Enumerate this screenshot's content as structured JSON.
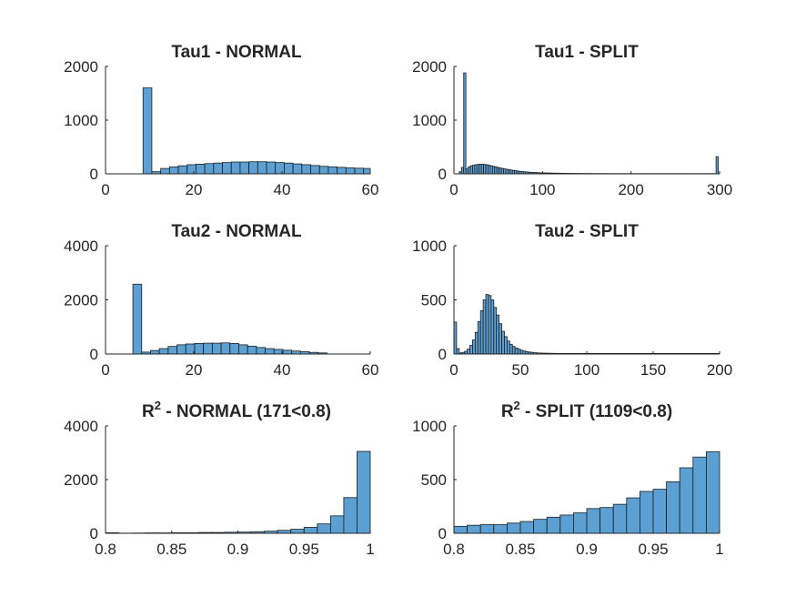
{
  "figure": {
    "bar_color": "#5b9fd3",
    "edge_color": "#1d1d1d",
    "axis_color": "#262626",
    "background": "#ffffff"
  },
  "chart_data": [
    {
      "type": "bar",
      "title": "Tau1 - NORMAL",
      "title_sup": "",
      "xlim": [
        0,
        60
      ],
      "ylim": [
        0,
        2000
      ],
      "xticks": [
        0,
        20,
        40,
        60
      ],
      "xtick_labels": [
        "0",
        "20",
        "40",
        "60"
      ],
      "yticks": [
        0,
        1000,
        2000
      ],
      "ytick_labels": [
        "0",
        "1000",
        "2000"
      ],
      "bin_start": 6.5,
      "bin_width": 2,
      "values": [
        0,
        1600,
        40,
        100,
        130,
        150,
        170,
        180,
        190,
        200,
        210,
        220,
        220,
        225,
        225,
        220,
        210,
        200,
        185,
        170,
        155,
        140,
        130,
        120,
        110,
        105,
        100
      ]
    },
    {
      "type": "bar",
      "title": "Tau1 - SPLIT",
      "title_sup": "",
      "xlim": [
        0,
        300
      ],
      "ylim": [
        0,
        2000
      ],
      "xticks": [
        0,
        100,
        200,
        300
      ],
      "xtick_labels": [
        "0",
        "100",
        "200",
        "300"
      ],
      "yticks": [
        0,
        1000,
        2000
      ],
      "ytick_labels": [
        "0",
        "1000",
        "2000"
      ],
      "bin_start": 1,
      "bin_width": 2.5,
      "values": [
        0,
        0,
        40,
        120,
        1880,
        90,
        130,
        150,
        160,
        170,
        175,
        180,
        180,
        175,
        170,
        160,
        150,
        140,
        130,
        120,
        110,
        100,
        92,
        85,
        78,
        70,
        64,
        58,
        52,
        47,
        42,
        38,
        34,
        31,
        28,
        26,
        24,
        22,
        20,
        18,
        17,
        16,
        15,
        14,
        13,
        12,
        12,
        11,
        10,
        10,
        9,
        9,
        8,
        8,
        8,
        7,
        7,
        7,
        6,
        6,
        6,
        6,
        5,
        5,
        5,
        5,
        5,
        5,
        5,
        5,
        4,
        4,
        4,
        4,
        4,
        4,
        4,
        4,
        4,
        4,
        4,
        4,
        4,
        4,
        4,
        4,
        4,
        4,
        4,
        4,
        4,
        4,
        4,
        4,
        4,
        4,
        4,
        4,
        4,
        4,
        4,
        4,
        4,
        4,
        4,
        4,
        4,
        4,
        4,
        4,
        4,
        4,
        4,
        4,
        4,
        4,
        4,
        4,
        320
      ]
    },
    {
      "type": "bar",
      "title": "Tau2 - NORMAL",
      "title_sup": "",
      "xlim": [
        0,
        60
      ],
      "ylim": [
        0,
        4000
      ],
      "xticks": [
        0,
        20,
        40,
        60
      ],
      "xtick_labels": [
        "0",
        "20",
        "40",
        "60"
      ],
      "yticks": [
        0,
        2000,
        4000
      ],
      "ytick_labels": [
        "0",
        "2000",
        "4000"
      ],
      "bin_start": 4.2,
      "bin_width": 2,
      "values": [
        0,
        2580,
        70,
        130,
        200,
        280,
        340,
        370,
        390,
        400,
        400,
        410,
        390,
        340,
        290,
        240,
        200,
        170,
        140,
        110,
        90,
        60,
        40
      ]
    },
    {
      "type": "bar",
      "title": "Tau2 - SPLIT",
      "title_sup": "",
      "xlim": [
        0,
        200
      ],
      "ylim": [
        0,
        1000
      ],
      "xticks": [
        0,
        50,
        100,
        150,
        200
      ],
      "xtick_labels": [
        "0",
        "50",
        "100",
        "150",
        "200"
      ],
      "yticks": [
        0,
        500,
        1000
      ],
      "ytick_labels": [
        "0",
        "500",
        "1000"
      ],
      "bin_start": 0,
      "bin_width": 2,
      "values": [
        295,
        50,
        10,
        15,
        25,
        45,
        80,
        130,
        200,
        300,
        400,
        500,
        550,
        540,
        500,
        430,
        360,
        280,
        210,
        160,
        120,
        90,
        70,
        55,
        45,
        35,
        28,
        22,
        18,
        15,
        12,
        10,
        9,
        8,
        7,
        7,
        6,
        6,
        6,
        5,
        5,
        5,
        5,
        5,
        5,
        5,
        5,
        5,
        5,
        5,
        5,
        5,
        5,
        5,
        5,
        5,
        5,
        5,
        5,
        5,
        5,
        5,
        5,
        5,
        5,
        5,
        5,
        5,
        5,
        5,
        5,
        5,
        5,
        5,
        5,
        5,
        5,
        5,
        5,
        5,
        5,
        5,
        5,
        5,
        5,
        5,
        5,
        5,
        5,
        5,
        5,
        5,
        5,
        5,
        5,
        5,
        5,
        5,
        5,
        5
      ]
    },
    {
      "type": "bar",
      "title": "R",
      "title_sup": "2",
      "title_rest": " - NORMAL (171<0.8)",
      "xlim": [
        0.8,
        1
      ],
      "ylim": [
        0,
        4000
      ],
      "xticks": [
        0.8,
        0.85,
        0.9,
        0.95,
        1
      ],
      "xtick_labels": [
        "0.8",
        "0.85",
        "0.9",
        "0.95",
        "1"
      ],
      "yticks": [
        0,
        2000,
        4000
      ],
      "ytick_labels": [
        "0",
        "2000",
        "4000"
      ],
      "bin_start": 0.8,
      "bin_width": 0.01,
      "values": [
        20,
        5,
        10,
        15,
        15,
        20,
        20,
        30,
        30,
        40,
        45,
        60,
        80,
        110,
        150,
        220,
        350,
        650,
        1330,
        3050
      ]
    },
    {
      "type": "bar",
      "title": "R",
      "title_sup": "2",
      "title_rest": " - SPLIT (1109<0.8)",
      "xlim": [
        0.8,
        1
      ],
      "ylim": [
        0,
        1000
      ],
      "xticks": [
        0.8,
        0.85,
        0.9,
        0.95,
        1
      ],
      "xtick_labels": [
        "0.8",
        "0.85",
        "0.9",
        "0.95",
        "1"
      ],
      "yticks": [
        0,
        500,
        1000
      ],
      "ytick_labels": [
        "0",
        "500",
        "1000"
      ],
      "bin_start": 0.8,
      "bin_width": 0.01,
      "values": [
        65,
        75,
        80,
        80,
        95,
        110,
        130,
        150,
        170,
        190,
        230,
        240,
        270,
        330,
        390,
        410,
        480,
        610,
        710,
        760
      ]
    }
  ]
}
